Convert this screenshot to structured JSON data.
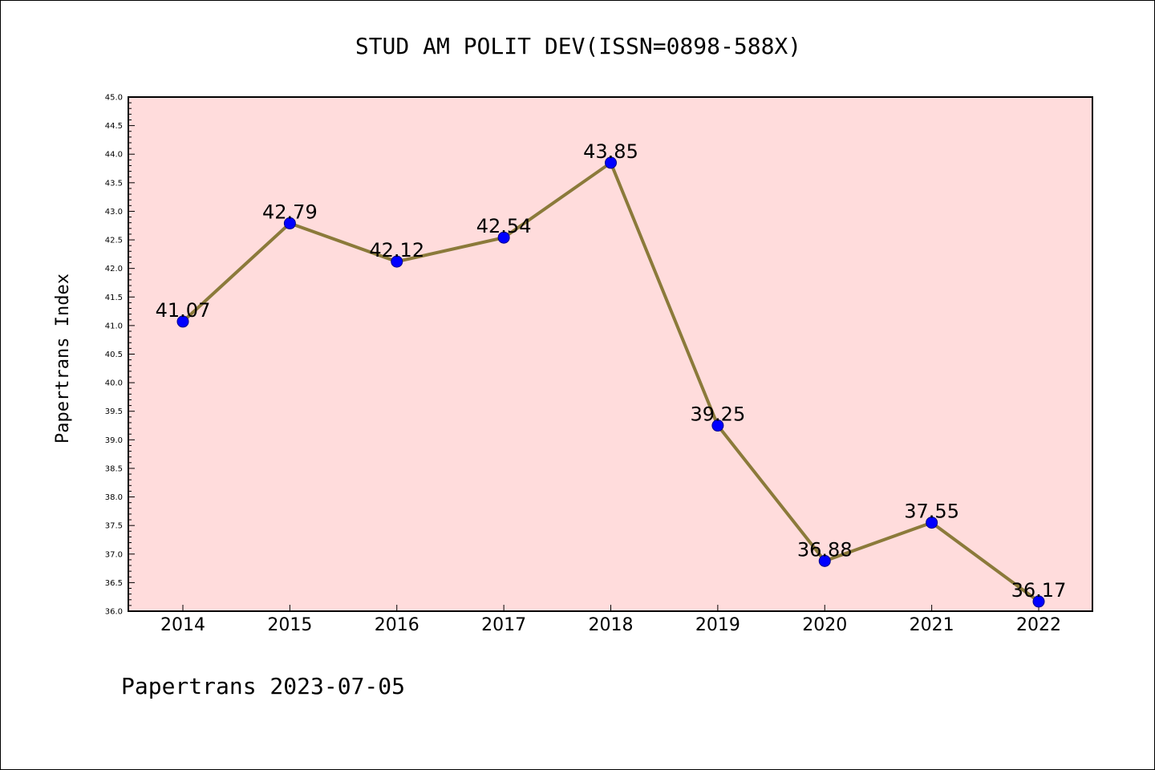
{
  "chart_data": {
    "type": "line",
    "title": "STUD AM POLIT DEV(ISSN=0898-588X)",
    "ylabel": "Papertrans Index",
    "xlabel": "",
    "categories": [
      "2014",
      "2015",
      "2016",
      "2017",
      "2018",
      "2019",
      "2020",
      "2021",
      "2022"
    ],
    "series": [
      {
        "values": [
          41.07,
          42.79,
          42.12,
          42.54,
          43.85,
          39.25,
          36.88,
          37.55,
          36.17
        ],
        "labels": [
          "41.07",
          "42.79",
          "42.12",
          "42.54",
          "43.85",
          "39.25",
          "36.88",
          "37.55",
          "36.17"
        ],
        "line_color": "#8b7a3a",
        "marker_color": "#0000ff"
      }
    ],
    "ylim": [
      36.0,
      45.0
    ],
    "yticks": [
      "36.0",
      "36.5",
      "37.0",
      "37.5",
      "38.0",
      "38.5",
      "39.0",
      "39.5",
      "40.0",
      "40.5",
      "41.0",
      "41.5",
      "42.0",
      "42.5",
      "43.0",
      "43.5",
      "44.0",
      "44.5",
      "45.0"
    ],
    "background_color": "#ffdcdc",
    "grid": false,
    "legend": "none"
  },
  "footer": {
    "text": "Papertrans 2023-07-05"
  }
}
